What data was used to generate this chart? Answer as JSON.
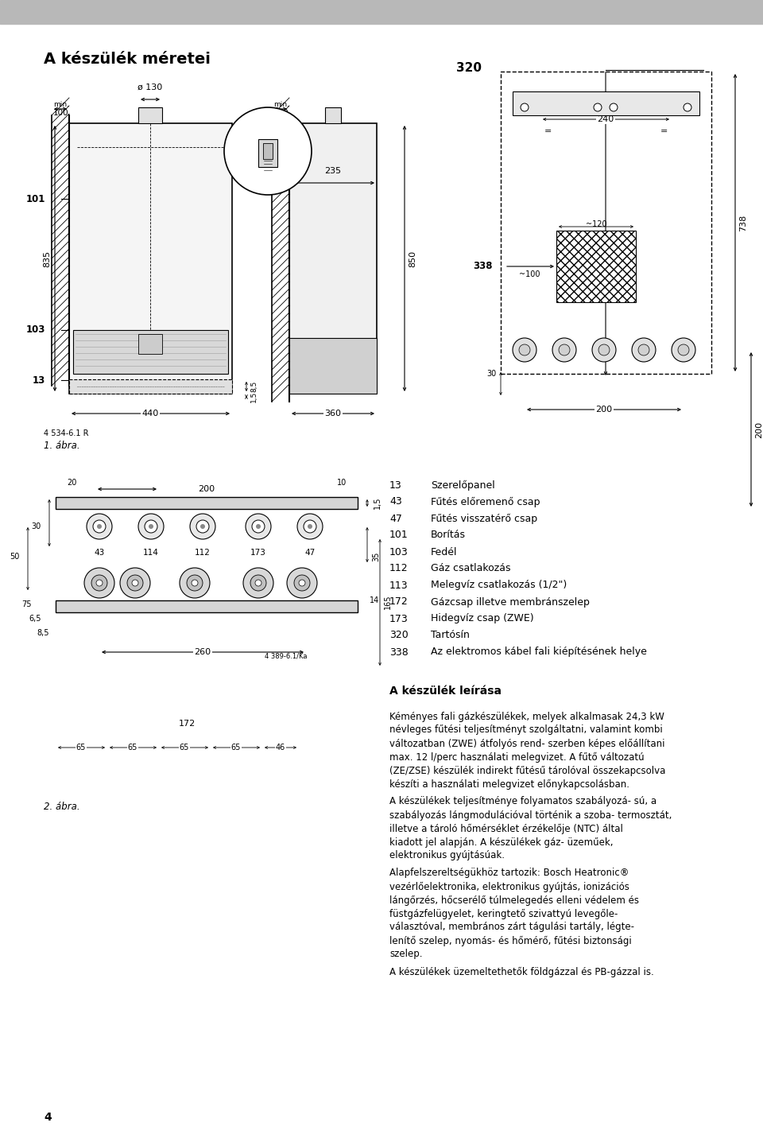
{
  "title_section": "A készülék méretei",
  "header_color": "#b8b8b8",
  "background_color": "#ffffff",
  "page_number": "4",
  "figure_label_1": "1. ábra.",
  "figure_ref": "4 534-6.1 R",
  "figure_label_2": "2. ábra.",
  "part_list": [
    [
      "13",
      "Szerelőpanel"
    ],
    [
      "43",
      "Fűtés előremenő csap"
    ],
    [
      "47",
      "Fűtés visszatérő csap"
    ],
    [
      "101",
      "Borítás"
    ],
    [
      "103",
      "Fedél"
    ],
    [
      "112",
      "Gáz csatlakozás"
    ],
    [
      "113",
      "Melegvíz csatlakozás (1/2\")"
    ],
    [
      "172",
      "Gázcsap illetve membránszelep"
    ],
    [
      "173",
      "Hidegvíz csap (ZWE)"
    ],
    [
      "320",
      "Tartósín"
    ],
    [
      "338",
      "Az elektromos kábel fali kiépítésének helye"
    ]
  ],
  "description_title": "A készülék leírása",
  "description_paragraphs": [
    "Kéményes fali gázkészülékek, melyek alkalmasak 24,3 kW névleges fűtési teljesítményt szolgáltatni, valamint kombi változatban (ZWE) átfolyós rend- szerben képes előállítani max. 12 l/perc használati melegvizet. A fűtő változatú (ZE/ZSE) készülék indirekt fűtésű tárolóval összekapcsolva készíti a használati melegvizet előnykapcsolásban.",
    "A készülékek teljesítménye folyamatos szabályozá- sú, a szabályozás lángmodulációval történik a szoba- termosztát, illetve a tároló hőmérséklet érzékelője (NTC) által kiadott jel alapján. A készülékek gáz- üzeműek, elektronikus gyújtásúak.",
    "Alapfelszereltségükhöz tartozik: Bosch Heatronic® vezérlőelektronika, elektronikus gyújtás, ionizációs lángőrzés, hőcserélő túlmelegedés elleni védelem és füstgázfelügyelet, keringtető szivattyú levegőle- választóval, membrános zárt tágulási tartály, légte- lenítő szelep, nyomás- és hőmérő, fűtési biztonsági szelep.",
    "A készülékek üzemeltethetők földgázzal és PB-gázzal is."
  ]
}
